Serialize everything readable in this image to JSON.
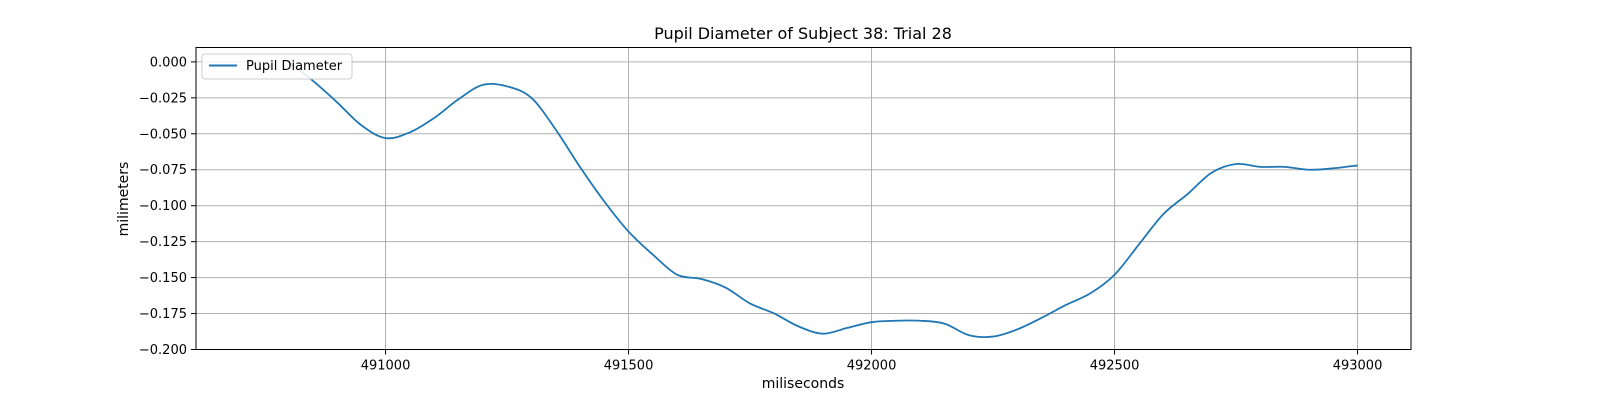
{
  "chart_data": {
    "type": "line",
    "title": "Pupil Diameter of Subject 38: Trial 28",
    "xlabel": "miliseconds",
    "ylabel": "milimeters",
    "xlim": [
      490610,
      493110
    ],
    "ylim": [
      -0.2,
      0.01
    ],
    "x_ticks": [
      491000,
      491500,
      492000,
      492500,
      493000
    ],
    "y_ticks": [
      0.0,
      -0.025,
      -0.05,
      -0.075,
      -0.1,
      -0.125,
      -0.15,
      -0.175,
      -0.2
    ],
    "x_tick_labels": [
      "491000",
      "491500",
      "492000",
      "492500",
      "493000"
    ],
    "y_tick_labels": [
      "0.000",
      "−0.025",
      "−0.050",
      "−0.075",
      "−0.100",
      "−0.125",
      "−0.150",
      "−0.175",
      "−0.200"
    ],
    "grid": true,
    "legend_position": "top-left",
    "colors": {
      "series": "#1f77b4",
      "grid": "#b0b0b0"
    },
    "series": [
      {
        "name": "Pupil Diameter",
        "x": [
          490800,
          490850,
          490900,
          490950,
          491000,
          491050,
          491100,
          491150,
          491200,
          491250,
          491300,
          491350,
          491400,
          491450,
          491500,
          491550,
          491600,
          491650,
          491700,
          491750,
          491800,
          491850,
          491900,
          491950,
          492000,
          492050,
          492100,
          492150,
          492200,
          492250,
          492300,
          492350,
          492400,
          492450,
          492500,
          492550,
          492600,
          492650,
          492700,
          492750,
          492800,
          492850,
          492900,
          492950,
          493000
        ],
        "y": [
          0.0,
          -0.013,
          -0.028,
          -0.044,
          -0.053,
          -0.049,
          -0.039,
          -0.026,
          -0.016,
          -0.017,
          -0.025,
          -0.047,
          -0.073,
          -0.097,
          -0.118,
          -0.134,
          -0.148,
          -0.151,
          -0.157,
          -0.168,
          -0.175,
          -0.184,
          -0.189,
          -0.185,
          -0.181,
          -0.18,
          -0.18,
          -0.182,
          -0.19,
          -0.191,
          -0.186,
          -0.178,
          -0.169,
          -0.161,
          -0.148,
          -0.127,
          -0.106,
          -0.092,
          -0.077,
          -0.071,
          -0.073,
          -0.073,
          -0.075,
          -0.074,
          -0.072
        ]
      }
    ]
  }
}
